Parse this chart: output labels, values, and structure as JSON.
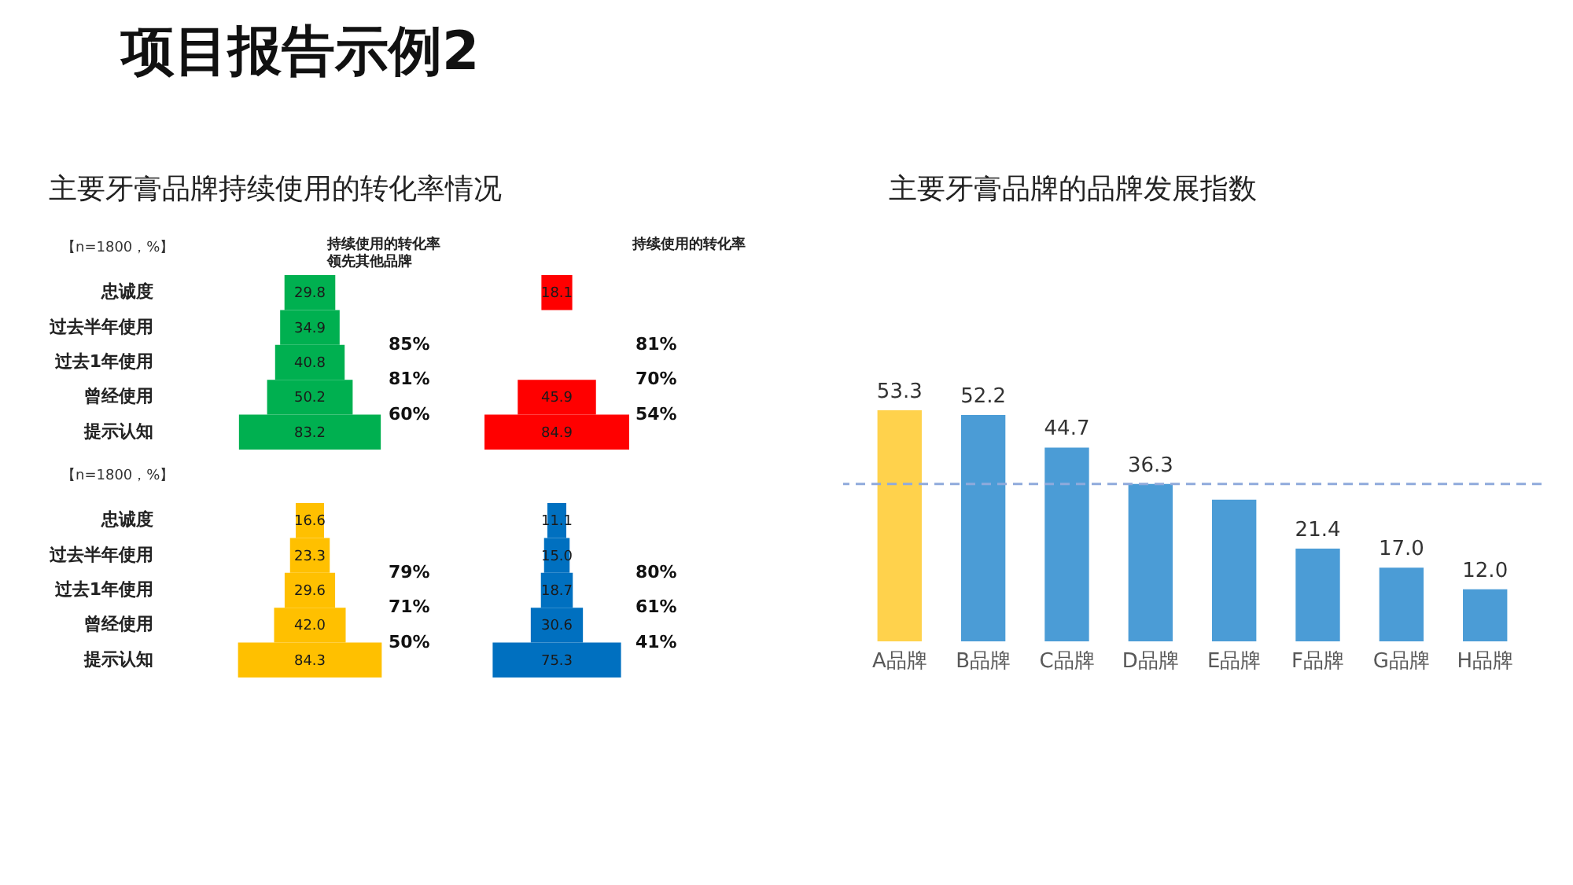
{
  "chart_data": [
    {
      "type": "other",
      "title": "项目报告示例2"
    },
    {
      "type": "other",
      "title": "主要牙膏品牌持续使用的转化率情况",
      "subtitle": "【n=1800，%】",
      "categories": [
        "忠诚度",
        "过去半年使用",
        "过去1年使用",
        "曾经使用",
        "提示认知"
      ],
      "values": [
        29.8,
        34.9,
        40.8,
        50.2,
        83.2
      ],
      "value_labels": [
        "29.8",
        "34.9",
        "40.8",
        "50.2",
        "83.2"
      ],
      "color": "#00b050",
      "annotations": [
        "持续使用的转化率领先其他品牌",
        "85%",
        "81%",
        "60%"
      ]
    },
    {
      "type": "other",
      "values": [
        18.1,
        null,
        null,
        45.9,
        84.9
      ],
      "value_labels": [
        "18.1",
        null,
        null,
        "45.9",
        "84.9"
      ],
      "color": "#ff0000",
      "annotations": [
        "持续使用的转化率",
        "81%",
        "70%",
        "54%"
      ]
    },
    {
      "type": "other",
      "subtitle": "【n=1800，%】",
      "categories": [
        "忠诚度",
        "过去半年使用",
        "过去1年使用",
        "曾经使用",
        "提示认知"
      ],
      "values": [
        16.6,
        23.3,
        29.6,
        42.0,
        84.3
      ],
      "value_labels": [
        "16.6",
        "23.3",
        "29.6",
        "42.0",
        "84.3"
      ],
      "color": "#ffc000",
      "annotations": [
        "79%",
        "71%",
        "50%"
      ]
    },
    {
      "type": "other",
      "values": [
        11.1,
        15.0,
        18.7,
        30.6,
        75.3
      ],
      "value_labels": [
        "11.1",
        "15.0",
        "18.7",
        "30.6",
        "75.3"
      ],
      "color": "#0070c0",
      "annotations": [
        "80%",
        "61%",
        "41%"
      ]
    },
    {
      "type": "bar",
      "title": "主要牙膏品牌的品牌发展指数",
      "categories": [
        "A品牌",
        "B品牌",
        "C品牌",
        "D品牌",
        "E品牌",
        "F品牌",
        "G品牌",
        "H品牌"
      ],
      "values": [
        53.3,
        52.2,
        44.7,
        36.3,
        32.7,
        21.4,
        17.0,
        12.0
      ],
      "colors": [
        "#ffd24c",
        "#4b9cd6",
        "#4b9cd6",
        "#4b9cd6",
        "#4b9cd6",
        "#4b9cd6",
        "#4b9cd6",
        "#4b9cd6"
      ],
      "value_labels": [
        "53.3",
        "52.2",
        "44.7",
        "36.3",
        null,
        "21.4",
        "17.0",
        "12.0"
      ],
      "tick_labels": "x",
      "ref_lines": [
        {
          "axis": "y",
          "value": 36.3,
          "color": "#8faadc",
          "line_style": "dashed"
        }
      ]
    }
  ]
}
